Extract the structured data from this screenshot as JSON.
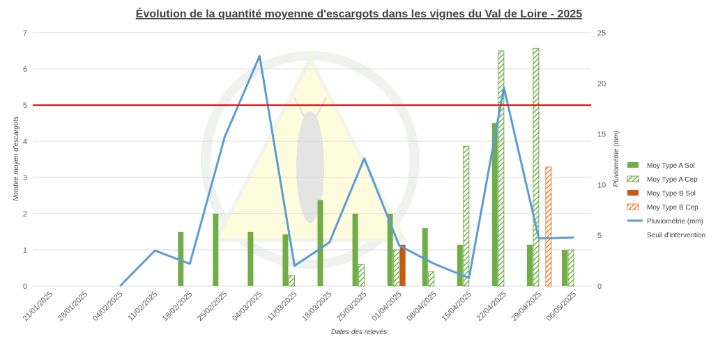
{
  "chart_data": {
    "type": "bar",
    "title": "Évolution de la quantité moyenne d'escargots dans les vignes du Val de Loire - 2025",
    "xlabel": "Dates des relevés",
    "ylabel": "Nombre moyen d'escargots",
    "y2label": "Pluviométrie (mm)",
    "ylim": [
      0,
      7
    ],
    "y2lim": [
      0,
      25
    ],
    "y_ticks": [
      0,
      1,
      2,
      3,
      4,
      5,
      6,
      7
    ],
    "y2_ticks": [
      0,
      5,
      10,
      15,
      20,
      25
    ],
    "grid": true,
    "legend_position": "right",
    "categories": [
      "21/01/2025",
      "28/01/2025",
      "04/02/2025",
      "11/02/2025",
      "18/02/2025",
      "25/02/2025",
      "04/03/2025",
      "11/03/2025",
      "18/03/2025",
      "25/03/2025",
      "01/04/2025",
      "08/04/2025",
      "15/04/2025",
      "22/04/2025",
      "29/04/2025",
      "06/05/2025"
    ],
    "series": [
      {
        "name": "Moy Type A Sol",
        "kind": "bar",
        "style": "solid",
        "color": "#70ad47",
        "axis": "left",
        "values": [
          null,
          null,
          null,
          null,
          1.5,
          2.0,
          1.5,
          1.43,
          2.38,
          2.0,
          2.0,
          1.6,
          1.14,
          4.5,
          1.14,
          1.0
        ]
      },
      {
        "name": "Moy Type A Cep",
        "kind": "bar",
        "style": "hatched",
        "color": "#70ad47",
        "axis": "left",
        "values": [
          null,
          null,
          null,
          null,
          null,
          null,
          null,
          0.29,
          null,
          0.6,
          1.0,
          0.4,
          3.86,
          6.5,
          6.57,
          1.0
        ]
      },
      {
        "name": "Moy Type B Sol",
        "kind": "bar",
        "style": "solid",
        "color": "#c55a11",
        "axis": "left",
        "values": [
          null,
          null,
          null,
          null,
          null,
          null,
          null,
          null,
          null,
          null,
          1.14,
          null,
          null,
          null,
          null,
          null
        ]
      },
      {
        "name": "Moy Type B Cep",
        "kind": "bar",
        "style": "hatched",
        "color": "#ed7d31",
        "axis": "left",
        "values": [
          null,
          null,
          null,
          null,
          null,
          null,
          null,
          null,
          null,
          null,
          null,
          null,
          null,
          null,
          3.29,
          null
        ]
      },
      {
        "name": "Pluviométrie (mm)",
        "kind": "line",
        "color": "#5b9bd5",
        "axis": "right",
        "values": [
          null,
          null,
          0,
          3.5,
          2.2,
          14.7,
          22.7,
          2.0,
          4.3,
          12.6,
          4.0,
          2.2,
          0.8,
          19.6,
          4.7,
          4.8
        ]
      },
      {
        "name": "Seuil d'intervention",
        "kind": "line",
        "color": "#ff0000",
        "axis": "left",
        "value": 5
      }
    ]
  }
}
